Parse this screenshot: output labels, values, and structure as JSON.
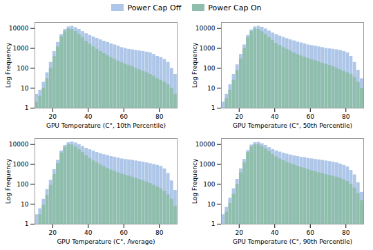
{
  "chart_data": [
    {
      "type": "histogram",
      "xlabel": "GPU Temperature (C°, 10th Percentile)",
      "ylabel": "Log Frequency",
      "bins": [
        10,
        12,
        14,
        16,
        18,
        20,
        22,
        24,
        26,
        28,
        30,
        32,
        34,
        36,
        38,
        40,
        42,
        44,
        46,
        48,
        50,
        52,
        54,
        56,
        58,
        60,
        62,
        64,
        66,
        68,
        70,
        72,
        74,
        76,
        78,
        80,
        82,
        84,
        86,
        88,
        90
      ],
      "series": [
        {
          "name": "Power Cap Off",
          "color": "#aec6e8",
          "values": [
            5,
            8,
            20,
            60,
            200,
            700,
            2000,
            5000,
            9000,
            12000,
            13000,
            11000,
            9000,
            7000,
            5500,
            4500,
            3800,
            3200,
            2700,
            2300,
            2000,
            1700,
            1500,
            1300,
            1100,
            1000,
            900,
            850,
            800,
            750,
            700,
            650,
            600,
            500,
            400,
            350,
            280,
            200,
            100,
            50
          ]
        },
        {
          "name": "Power Cap On",
          "color": "#8fbfac",
          "values": [
            2,
            4,
            10,
            30,
            100,
            400,
            1200,
            4000,
            7000,
            9500,
            9000,
            7000,
            5000,
            3500,
            2300,
            1600,
            1200,
            900,
            700,
            550,
            430,
            350,
            280,
            230,
            190,
            160,
            140,
            120,
            100,
            85,
            70,
            60,
            50,
            40,
            30,
            25,
            20,
            15,
            10,
            5
          ]
        }
      ],
      "xlim": [
        10,
        90
      ],
      "xticks": [
        20,
        40,
        60,
        80
      ],
      "ylim": [
        1,
        20000
      ],
      "yticks": [
        1,
        10,
        100,
        1000,
        10000
      ],
      "log": "y",
      "grid": false,
      "legend": "top"
    },
    {
      "type": "histogram",
      "xlabel": "GPU Temperature (C°, 50th Percentile)",
      "ylabel": "Log Frequency",
      "bins": [
        10,
        12,
        14,
        16,
        18,
        20,
        22,
        24,
        26,
        28,
        30,
        32,
        34,
        36,
        38,
        40,
        42,
        44,
        46,
        48,
        50,
        52,
        54,
        56,
        58,
        60,
        62,
        64,
        66,
        68,
        70,
        72,
        74,
        76,
        78,
        80,
        82,
        84,
        86,
        88,
        90
      ],
      "series": [
        {
          "name": "Power Cap Off",
          "color": "#aec6e8",
          "values": [
            2,
            5,
            15,
            50,
            150,
            500,
            1500,
            4500,
            8500,
            12000,
            13000,
            11500,
            9500,
            7500,
            6000,
            5000,
            4200,
            3600,
            3100,
            2700,
            2400,
            2100,
            1900,
            1700,
            1500,
            1400,
            1300,
            1200,
            1100,
            1000,
            950,
            900,
            850,
            800,
            700,
            600,
            400,
            200,
            80,
            30
          ]
        },
        {
          "name": "Power Cap On",
          "color": "#8fbfac",
          "values": [
            1,
            3,
            8,
            25,
            80,
            300,
            1000,
            3500,
            7000,
            9500,
            9000,
            7000,
            5000,
            3500,
            2500,
            1800,
            1400,
            1100,
            900,
            730,
            600,
            500,
            420,
            360,
            310,
            270,
            240,
            210,
            180,
            160,
            140,
            120,
            100,
            85,
            70,
            60,
            50,
            35,
            20,
            10
          ]
        }
      ],
      "xlim": [
        10,
        90
      ],
      "xticks": [
        20,
        40,
        60,
        80
      ],
      "ylim": [
        1,
        20000
      ],
      "yticks": [
        1,
        10,
        100,
        1000,
        10000
      ],
      "log": "y",
      "grid": false,
      "legend": "top"
    },
    {
      "type": "histogram",
      "xlabel": "GPU Temperature (C°, Average)",
      "ylabel": "Log Frequency",
      "bins": [
        10,
        12,
        14,
        16,
        18,
        20,
        22,
        24,
        26,
        28,
        30,
        32,
        34,
        36,
        38,
        40,
        42,
        44,
        46,
        48,
        50,
        52,
        54,
        56,
        58,
        60,
        62,
        64,
        66,
        68,
        70,
        72,
        74,
        76,
        78,
        80,
        82,
        84,
        86,
        88,
        90
      ],
      "series": [
        {
          "name": "Power Cap Off",
          "color": "#aec6e8",
          "values": [
            3,
            6,
            18,
            55,
            160,
            550,
            1600,
            4800,
            9000,
            12500,
            13500,
            12000,
            10000,
            8000,
            6500,
            5500,
            4700,
            4000,
            3500,
            3100,
            2800,
            2500,
            2300,
            2100,
            1900,
            1800,
            1700,
            1600,
            1500,
            1400,
            1300,
            1200,
            1100,
            1000,
            900,
            800,
            600,
            350,
            150,
            50
          ]
        },
        {
          "name": "Power Cap On",
          "color": "#8fbfac",
          "values": [
            1,
            3,
            9,
            28,
            90,
            320,
            1100,
            3800,
            7200,
            9800,
            9500,
            7500,
            5500,
            4000,
            2800,
            2000,
            1500,
            1200,
            950,
            780,
            640,
            530,
            450,
            380,
            330,
            290,
            260,
            230,
            200,
            175,
            150,
            130,
            110,
            90,
            75,
            60,
            45,
            30,
            18,
            8
          ]
        }
      ],
      "xlim": [
        10,
        90
      ],
      "xticks": [
        20,
        40,
        60,
        80
      ],
      "ylim": [
        1,
        20000
      ],
      "yticks": [
        1,
        10,
        100,
        1000,
        10000
      ],
      "log": "y",
      "grid": false,
      "legend": "top"
    },
    {
      "type": "histogram",
      "xlabel": "GPU Temperature (C°, 90th Percentile)",
      "ylabel": "Log Frequency",
      "bins": [
        10,
        12,
        14,
        16,
        18,
        20,
        22,
        24,
        26,
        28,
        30,
        32,
        34,
        36,
        38,
        40,
        42,
        44,
        46,
        48,
        50,
        52,
        54,
        56,
        58,
        60,
        62,
        64,
        66,
        68,
        70,
        72,
        74,
        76,
        78,
        80,
        82,
        84,
        86,
        88,
        90
      ],
      "series": [
        {
          "name": "Power Cap Off",
          "color": "#aec6e8",
          "values": [
            3,
            7,
            20,
            60,
            180,
            600,
            1800,
            5000,
            9500,
            12500,
            13000,
            11000,
            9000,
            7000,
            5600,
            4800,
            4200,
            3700,
            3300,
            3000,
            2700,
            2500,
            2300,
            2200,
            2000,
            1900,
            1800,
            1700,
            1600,
            1500,
            1400,
            1300,
            1200,
            1050,
            900,
            750,
            500,
            300,
            120,
            40
          ]
        },
        {
          "name": "Power Cap On",
          "color": "#8fbfac",
          "values": [
            1,
            4,
            11,
            32,
            100,
            380,
            1200,
            4000,
            7500,
            10000,
            9800,
            8000,
            6000,
            4500,
            3200,
            2400,
            1900,
            1550,
            1300,
            1100,
            950,
            820,
            710,
            620,
            545,
            480,
            430,
            385,
            345,
            310,
            280,
            255,
            230,
            200,
            170,
            140,
            100,
            65,
            35,
            15
          ]
        }
      ],
      "xlim": [
        10,
        90
      ],
      "xticks": [
        20,
        40,
        60,
        80
      ],
      "ylim": [
        1,
        20000
      ],
      "yticks": [
        1,
        10,
        100,
        1000,
        10000
      ],
      "log": "y",
      "grid": false,
      "legend": "top"
    }
  ]
}
